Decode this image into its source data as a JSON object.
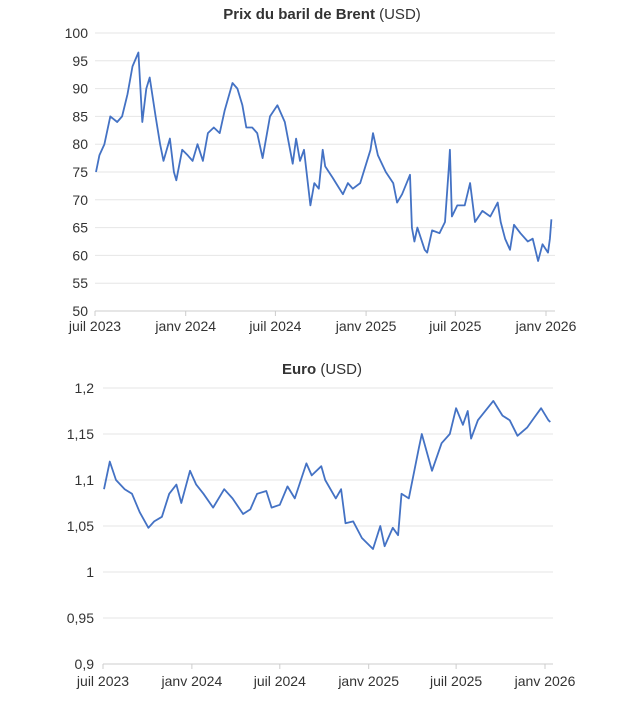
{
  "chart_data": [
    {
      "type": "line",
      "title_bold": "Prix du baril de Brent",
      "title_rest": " (USD)",
      "xlabel": "",
      "ylabel": "",
      "ylim": [
        50,
        100
      ],
      "yticks": [
        50,
        55,
        60,
        65,
        70,
        75,
        80,
        85,
        90,
        95,
        100
      ],
      "xticks": [
        {
          "date": "2023-07-01",
          "label": "juil 2023"
        },
        {
          "date": "2024-01-01",
          "label": "janv 2024"
        },
        {
          "date": "2024-07-01",
          "label": "juil 2024"
        },
        {
          "date": "2025-01-01",
          "label": "janv 2025"
        },
        {
          "date": "2025-07-01",
          "label": "juil 2025"
        },
        {
          "date": "2026-01-01",
          "label": "janv 2026"
        }
      ],
      "grid": true,
      "color": "#4472c4",
      "series": [
        {
          "name": "Brent",
          "points": [
            [
              "2023-07-03",
              75
            ],
            [
              "2023-07-10",
              78
            ],
            [
              "2023-07-20",
              80
            ],
            [
              "2023-08-01",
              85
            ],
            [
              "2023-08-15",
              84
            ],
            [
              "2023-08-25",
              85
            ],
            [
              "2023-09-05",
              89
            ],
            [
              "2023-09-15",
              94
            ],
            [
              "2023-09-27",
              96.5
            ],
            [
              "2023-10-05",
              84
            ],
            [
              "2023-10-13",
              90
            ],
            [
              "2023-10-20",
              92
            ],
            [
              "2023-11-01",
              85
            ],
            [
              "2023-11-10",
              80
            ],
            [
              "2023-11-17",
              77
            ],
            [
              "2023-11-30",
              81
            ],
            [
              "2023-12-08",
              75
            ],
            [
              "2023-12-13",
              73.5
            ],
            [
              "2023-12-25",
              79
            ],
            [
              "2024-01-05",
              78
            ],
            [
              "2024-01-15",
              77
            ],
            [
              "2024-01-25",
              80
            ],
            [
              "2024-02-05",
              77
            ],
            [
              "2024-02-15",
              82
            ],
            [
              "2024-02-27",
              83
            ],
            [
              "2024-03-10",
              82
            ],
            [
              "2024-03-20",
              86
            ],
            [
              "2024-04-05",
              91
            ],
            [
              "2024-04-15",
              90
            ],
            [
              "2024-04-25",
              87
            ],
            [
              "2024-05-03",
              83
            ],
            [
              "2024-05-15",
              83
            ],
            [
              "2024-05-25",
              82
            ],
            [
              "2024-06-05",
              77.5
            ],
            [
              "2024-06-20",
              85
            ],
            [
              "2024-07-05",
              87
            ],
            [
              "2024-07-20",
              84
            ],
            [
              "2024-08-05",
              76.5
            ],
            [
              "2024-08-12",
              81
            ],
            [
              "2024-08-20",
              77
            ],
            [
              "2024-08-28",
              79
            ],
            [
              "2024-09-10",
              69
            ],
            [
              "2024-09-18",
              73
            ],
            [
              "2024-09-27",
              72
            ],
            [
              "2024-10-05",
              79
            ],
            [
              "2024-10-10",
              76
            ],
            [
              "2024-10-25",
              74
            ],
            [
              "2024-11-01",
              73
            ],
            [
              "2024-11-15",
              71
            ],
            [
              "2024-11-25",
              73
            ],
            [
              "2024-12-05",
              72
            ],
            [
              "2024-12-20",
              73
            ],
            [
              "2025-01-10",
              79
            ],
            [
              "2025-01-15",
              82
            ],
            [
              "2025-01-25",
              78
            ],
            [
              "2025-02-10",
              75
            ],
            [
              "2025-02-25",
              73
            ],
            [
              "2025-03-05",
              69.5
            ],
            [
              "2025-03-15",
              71
            ],
            [
              "2025-03-31",
              74.5
            ],
            [
              "2025-04-04",
              65
            ],
            [
              "2025-04-09",
              62.5
            ],
            [
              "2025-04-15",
              65
            ],
            [
              "2025-04-30",
              61
            ],
            [
              "2025-05-05",
              60.5
            ],
            [
              "2025-05-15",
              64.5
            ],
            [
              "2025-05-30",
              64
            ],
            [
              "2025-06-10",
              66
            ],
            [
              "2025-06-18",
              76
            ],
            [
              "2025-06-20",
              79
            ],
            [
              "2025-06-24",
              67
            ],
            [
              "2025-07-05",
              69
            ],
            [
              "2025-07-20",
              69
            ],
            [
              "2025-07-31",
              73
            ],
            [
              "2025-08-10",
              66
            ],
            [
              "2025-08-25",
              68
            ],
            [
              "2025-09-10",
              67
            ],
            [
              "2025-09-25",
              69.5
            ],
            [
              "2025-10-01",
              66
            ],
            [
              "2025-10-10",
              63
            ],
            [
              "2025-10-20",
              61
            ],
            [
              "2025-10-28",
              65.5
            ],
            [
              "2025-11-10",
              64
            ],
            [
              "2025-11-25",
              62.5
            ],
            [
              "2025-12-05",
              63
            ],
            [
              "2025-12-16",
              59
            ],
            [
              "2025-12-25",
              62
            ],
            [
              "2026-01-05",
              60.5
            ],
            [
              "2026-01-09",
              63
            ],
            [
              "2026-01-12",
              66.5
            ]
          ]
        }
      ]
    },
    {
      "type": "line",
      "title_bold": "Euro",
      "title_rest": " (USD)",
      "xlabel": "",
      "ylabel": "",
      "ylim": [
        0.9,
        1.2
      ],
      "yticks": [
        0.9,
        0.95,
        1,
        1.05,
        1.1,
        1.15,
        1.2
      ],
      "ytick_labels": [
        "0,9",
        "0,95",
        "1",
        "1,05",
        "1,1",
        "1,15",
        "1,2"
      ],
      "xticks": [
        {
          "date": "2023-07-01",
          "label": "juil 2023"
        },
        {
          "date": "2024-01-01",
          "label": "janv 2024"
        },
        {
          "date": "2024-07-01",
          "label": "juil 2024"
        },
        {
          "date": "2025-01-01",
          "label": "janv 2025"
        },
        {
          "date": "2025-07-01",
          "label": "juil 2025"
        },
        {
          "date": "2026-01-01",
          "label": "janv 2026"
        }
      ],
      "grid": true,
      "color": "#4472c4",
      "series": [
        {
          "name": "Euro",
          "points": [
            [
              "2023-07-03",
              1.09
            ],
            [
              "2023-07-15",
              1.12
            ],
            [
              "2023-07-28",
              1.1
            ],
            [
              "2023-08-15",
              1.09
            ],
            [
              "2023-08-30",
              1.085
            ],
            [
              "2023-09-15",
              1.065
            ],
            [
              "2023-10-03",
              1.048
            ],
            [
              "2023-10-15",
              1.055
            ],
            [
              "2023-10-31",
              1.06
            ],
            [
              "2023-11-15",
              1.085
            ],
            [
              "2023-11-30",
              1.095
            ],
            [
              "2023-12-10",
              1.075
            ],
            [
              "2023-12-28",
              1.11
            ],
            [
              "2024-01-10",
              1.095
            ],
            [
              "2024-01-25",
              1.085
            ],
            [
              "2024-02-14",
              1.07
            ],
            [
              "2024-03-08",
              1.09
            ],
            [
              "2024-03-25",
              1.08
            ],
            [
              "2024-04-16",
              1.063
            ],
            [
              "2024-05-01",
              1.068
            ],
            [
              "2024-05-15",
              1.085
            ],
            [
              "2024-06-03",
              1.088
            ],
            [
              "2024-06-14",
              1.07
            ],
            [
              "2024-07-01",
              1.073
            ],
            [
              "2024-07-17",
              1.093
            ],
            [
              "2024-08-01",
              1.08
            ],
            [
              "2024-08-25",
              1.118
            ],
            [
              "2024-09-05",
              1.105
            ],
            [
              "2024-09-25",
              1.115
            ],
            [
              "2024-10-03",
              1.1
            ],
            [
              "2024-10-25",
              1.08
            ],
            [
              "2024-11-05",
              1.09
            ],
            [
              "2024-11-14",
              1.053
            ],
            [
              "2024-11-30",
              1.055
            ],
            [
              "2024-12-18",
              1.037
            ],
            [
              "2025-01-10",
              1.025
            ],
            [
              "2025-01-25",
              1.05
            ],
            [
              "2025-02-03",
              1.028
            ],
            [
              "2025-02-20",
              1.048
            ],
            [
              "2025-03-03",
              1.04
            ],
            [
              "2025-03-10",
              1.085
            ],
            [
              "2025-03-25",
              1.08
            ],
            [
              "2025-04-15",
              1.135
            ],
            [
              "2025-04-21",
              1.15
            ],
            [
              "2025-05-12",
              1.11
            ],
            [
              "2025-06-01",
              1.14
            ],
            [
              "2025-06-18",
              1.15
            ],
            [
              "2025-07-01",
              1.178
            ],
            [
              "2025-07-15",
              1.16
            ],
            [
              "2025-07-25",
              1.175
            ],
            [
              "2025-08-01",
              1.145
            ],
            [
              "2025-08-15",
              1.165
            ],
            [
              "2025-09-16",
              1.186
            ],
            [
              "2025-10-05",
              1.17
            ],
            [
              "2025-10-20",
              1.165
            ],
            [
              "2025-11-05",
              1.148
            ],
            [
              "2025-11-25",
              1.157
            ],
            [
              "2025-12-10",
              1.168
            ],
            [
              "2025-12-24",
              1.178
            ],
            [
              "2026-01-08",
              1.165
            ],
            [
              "2026-01-12",
              1.163
            ]
          ]
        }
      ]
    }
  ]
}
